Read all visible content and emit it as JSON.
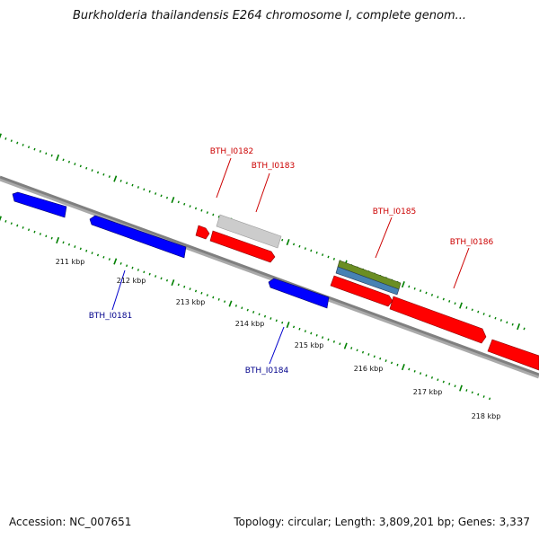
{
  "title": "Burkholderia thailandensis E264 chromosome I, complete genom...",
  "footer": {
    "accession": "Accession: NC_007651",
    "summary": "Topology: circular; Length: 3,809,201 bp; Genes: 3,337"
  },
  "colors": {
    "forward_gene": "#ff0000",
    "reverse_gene": "#0000ff",
    "pseudo_gene": "#c8c8c8",
    "feature_green": "#6b8e23",
    "feature_blue": "#4682b4",
    "backbone": "#808080",
    "tick": "#008000",
    "forward_label": "#cc0000",
    "reverse_label": "#00008b"
  },
  "axis_labels": [
    "211 kbp",
    "212 kbp",
    "213 kbp",
    "214 kbp",
    "215 kbp",
    "216 kbp",
    "217 kbp",
    "218 kbp"
  ],
  "gene_labels": {
    "forward": [
      "BTH_I0182",
      "BTH_I0183",
      "BTH_I0185",
      "BTH_I0186"
    ],
    "reverse": [
      "BTH_I0181",
      "BTH_I0184"
    ]
  }
}
